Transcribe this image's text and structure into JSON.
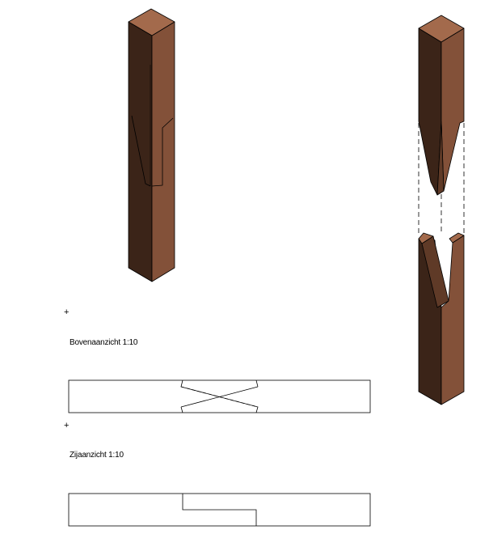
{
  "views": {
    "top_view_label": "Bovenaanzicht 1:10",
    "side_view_label": "Zijaanzicht 1:10"
  },
  "markers": {
    "origin_glyph": "+"
  },
  "colors": {
    "wood_top": "#a36a4c",
    "wood_right": "#835139",
    "wood_left": "#3b2418",
    "wood_mid": "#5f3a27",
    "line": "#000000"
  }
}
